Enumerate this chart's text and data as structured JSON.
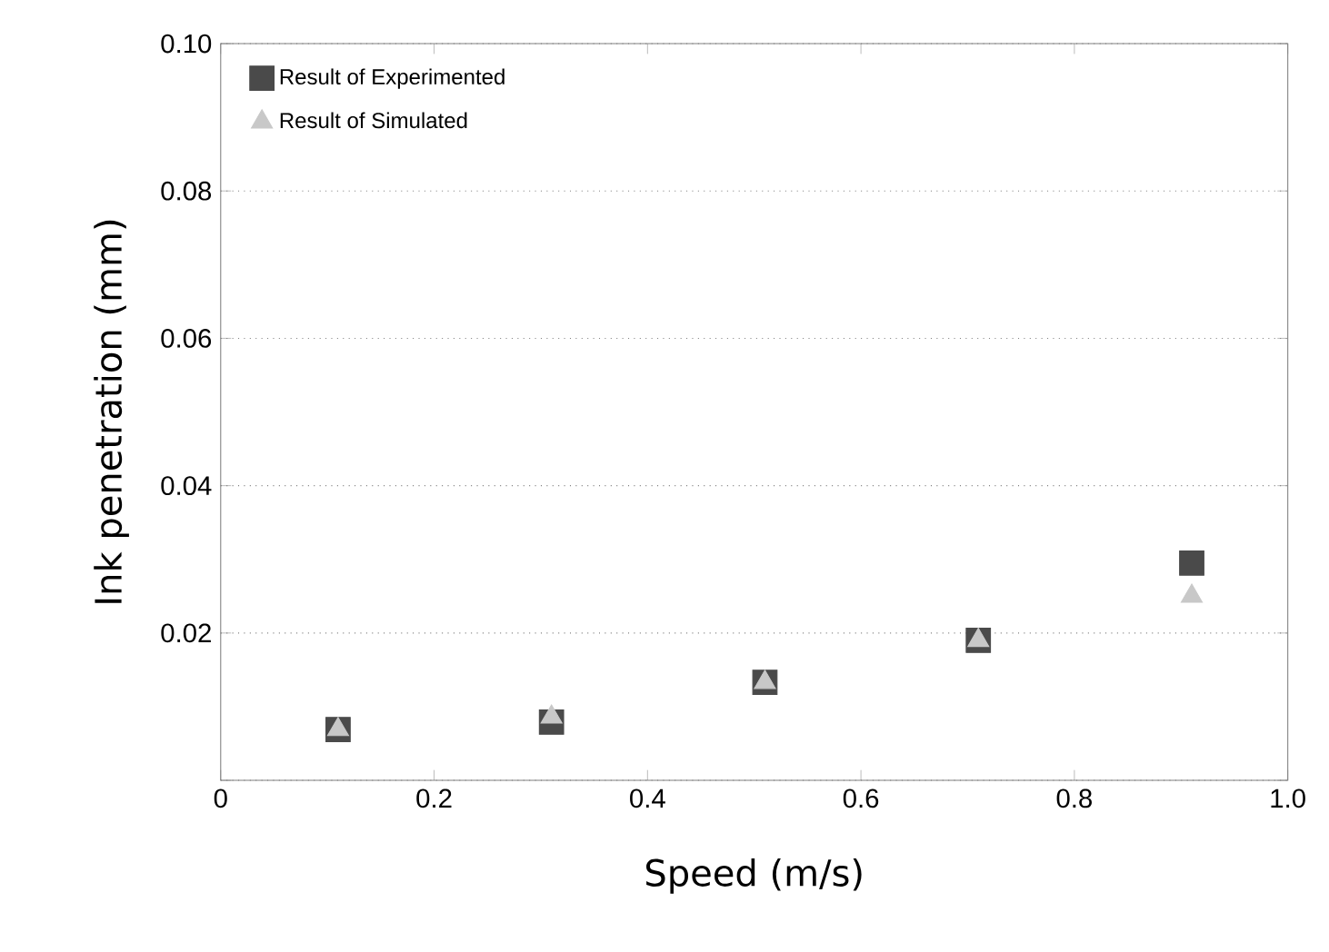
{
  "chart_data": {
    "type": "scatter",
    "xlabel": "Speed (m/s)",
    "ylabel": "Ink penetration (mm)",
    "xlim": [
      0,
      1.0
    ],
    "xticks": [
      0,
      0.2,
      0.4,
      0.6,
      0.8,
      {
        "value": 1.0,
        "label": "1.0"
      }
    ],
    "ylim": [
      0,
      0.1
    ],
    "yticks": [
      {
        "value": 0,
        "label": null
      },
      0.02,
      0.04,
      0.06,
      0.08,
      {
        "value": 0.1,
        "label": "0.10"
      }
    ],
    "grid": "y",
    "legend": "top left",
    "series": [
      {
        "name": "Result of Experimented",
        "color": "#4a4a4a",
        "marker": "square",
        "x": [
          0.11,
          0.31,
          0.51,
          0.71,
          0.91
        ],
        "values": [
          0.0069,
          0.0079,
          0.0133,
          0.019,
          0.0295
        ]
      },
      {
        "name": "Result of Simulated",
        "color": "#c8c8c8",
        "marker": "triangle",
        "x": [
          0.11,
          0.31,
          0.51,
          0.71,
          0.91
        ],
        "values": [
          0.0069,
          0.0086,
          0.0133,
          0.019,
          0.025
        ]
      }
    ]
  }
}
